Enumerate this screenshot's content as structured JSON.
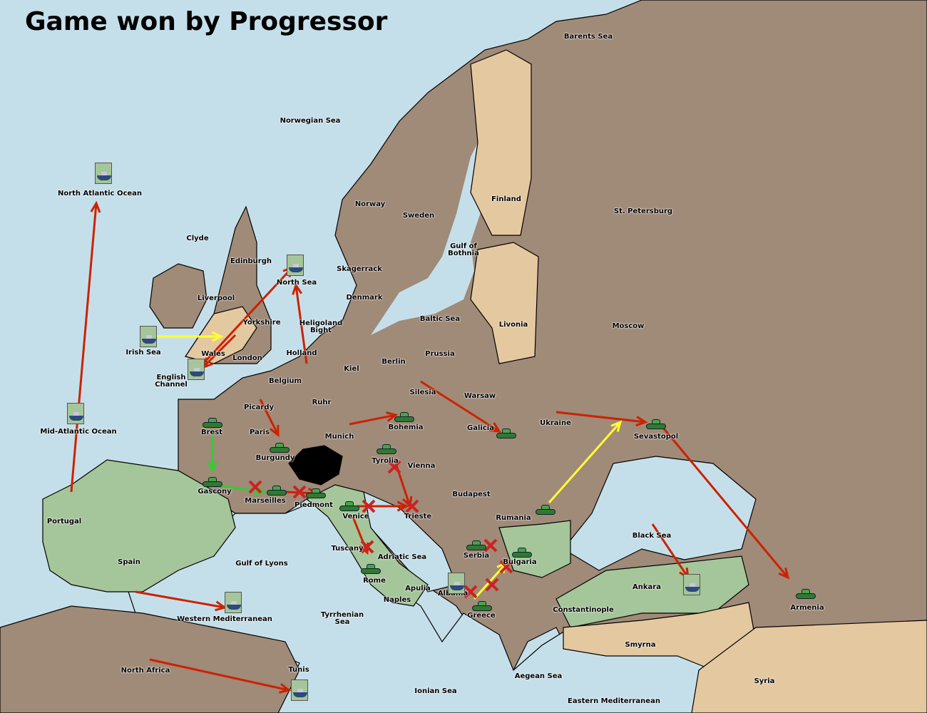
{
  "title": "Game won by Progressor",
  "colors": {
    "sea": "#c5dfea",
    "land": "#a08a78",
    "neutral": "#e4c8a0",
    "green_power": "#a5c59a",
    "order_move": "#cc2200",
    "order_support": "#ffff33",
    "order_convoy": "#33cc33",
    "failed_order": "#cc2222"
  },
  "provinces": [
    "Barents Sea",
    "Norwegian Sea",
    "North Atlantic Ocean",
    "Clyde",
    "Edinburgh",
    "Norway",
    "Sweden",
    "Finland",
    "St. Petersburg",
    "Gulf of Bothnia",
    "Skagerrack",
    "North Sea",
    "Liverpool",
    "Denmark",
    "Yorkshire",
    "Heligoland Bight",
    "Baltic Sea",
    "Livonia",
    "Moscow",
    "Irish Sea",
    "Wales",
    "London",
    "Holland",
    "Kiel",
    "Berlin",
    "Prussia",
    "English Channel",
    "Belgium",
    "Warsaw",
    "Silesia",
    "Ruhr",
    "Picardy",
    "Ukraine",
    "Bohemia",
    "Galicia",
    "Mid-Atlantic Ocean",
    "Brest",
    "Paris",
    "Munich",
    "Sevastopol",
    "Burgundy",
    "Tyrolia",
    "Vienna",
    "Gascony",
    "Budapest",
    "Marseilles",
    "Piedmont",
    "Venice",
    "Trieste",
    "Rumania",
    "Portugal",
    "Black Sea",
    "Tuscany",
    "Serbia",
    "Adriatic Sea",
    "Bulgaria",
    "Spain",
    "Gulf of Lyons",
    "Rome",
    "Apulia",
    "Ankara",
    "Albania",
    "Naples",
    "Armenia",
    "Constantinople",
    "Greece",
    "Western Mediterranean",
    "Tyrrhenian Sea",
    "Smyrna",
    "North Africa",
    "Tunis",
    "Aegean Sea",
    "Ionian Sea",
    "Syria",
    "Eastern Mediterranean"
  ],
  "units": [
    {
      "type": "fleet",
      "province": "North Atlantic Ocean"
    },
    {
      "type": "fleet",
      "province": "North Sea"
    },
    {
      "type": "fleet",
      "province": "Irish Sea"
    },
    {
      "type": "fleet",
      "province": "English Channel"
    },
    {
      "type": "fleet",
      "province": "Mid-Atlantic Ocean"
    },
    {
      "type": "fleet",
      "province": "Western Mediterranean"
    },
    {
      "type": "fleet",
      "province": "Tunis"
    },
    {
      "type": "fleet",
      "province": "Black Sea"
    },
    {
      "type": "fleet",
      "province": "Albania"
    },
    {
      "type": "army",
      "province": "Brest"
    },
    {
      "type": "army",
      "province": "Burgundy"
    },
    {
      "type": "army",
      "province": "Gascony"
    },
    {
      "type": "army",
      "province": "Marseilles"
    },
    {
      "type": "army",
      "province": "Piedmont"
    },
    {
      "type": "army",
      "province": "Bohemia"
    },
    {
      "type": "army",
      "province": "Tyrolia"
    },
    {
      "type": "army",
      "province": "Galicia"
    },
    {
      "type": "army",
      "province": "Sevastopol"
    },
    {
      "type": "army",
      "province": "Venice"
    },
    {
      "type": "army",
      "province": "Rome"
    },
    {
      "type": "army",
      "province": "Serbia"
    },
    {
      "type": "army",
      "province": "Bulgaria"
    },
    {
      "type": "army",
      "province": "Greece"
    },
    {
      "type": "army",
      "province": "Rumania"
    },
    {
      "type": "army",
      "province": "Armenia"
    }
  ]
}
